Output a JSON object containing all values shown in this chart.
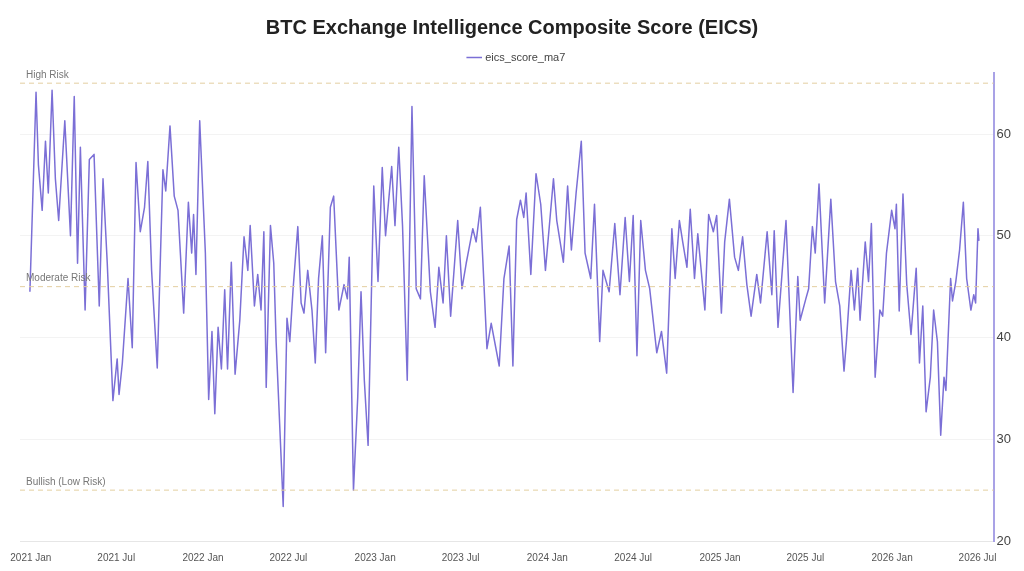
{
  "chart_data": {
    "type": "line",
    "title": "BTC Exchange Intelligence Composite Score (EICS)",
    "x": [
      "2020-12-30",
      "2021-01-05",
      "2021-01-12",
      "2021-01-17",
      "2021-01-25",
      "2021-02-01",
      "2021-02-07",
      "2021-02-15",
      "2021-02-22",
      "2021-03-01",
      "2021-03-14",
      "2021-03-26",
      "2021-04-03",
      "2021-04-10",
      "2021-04-16",
      "2021-04-26",
      "2021-05-05",
      "2021-05-15",
      "2021-05-26",
      "2021-06-03",
      "2021-06-12",
      "2021-06-24",
      "2021-07-03",
      "2021-07-07",
      "2021-07-14",
      "2021-07-26",
      "2021-08-04",
      "2021-08-12",
      "2021-08-21",
      "2021-08-30",
      "2021-09-06",
      "2021-09-14",
      "2021-09-26",
      "2021-10-08",
      "2021-10-14",
      "2021-10-23",
      "2021-11-01",
      "2021-11-09",
      "2021-11-21",
      "2021-12-01",
      "2021-12-08",
      "2021-12-12",
      "2021-12-17",
      "2021-12-25",
      "2022-01-06",
      "2022-01-13",
      "2022-01-20",
      "2022-01-26",
      "2022-02-02",
      "2022-02-09",
      "2022-02-16",
      "2022-02-22",
      "2022-03-02",
      "2022-03-10",
      "2022-03-20",
      "2022-03-29",
      "2022-04-06",
      "2022-04-11",
      "2022-04-20",
      "2022-04-27",
      "2022-05-04",
      "2022-05-10",
      "2022-05-15",
      "2022-05-24",
      "2022-05-31",
      "2022-06-05",
      "2022-06-20",
      "2022-06-28",
      "2022-07-04",
      "2022-07-11",
      "2022-07-21",
      "2022-07-28",
      "2022-08-03",
      "2022-08-11",
      "2022-08-20",
      "2022-08-27",
      "2022-09-03",
      "2022-09-11",
      "2022-09-18",
      "2022-09-28",
      "2022-10-05",
      "2022-10-16",
      "2022-10-27",
      "2022-11-03",
      "2022-11-07",
      "2022-11-16",
      "2022-11-25",
      "2022-12-02",
      "2022-12-09",
      "2022-12-17",
      "2022-12-29",
      "2023-01-07",
      "2023-01-16",
      "2023-01-23",
      "2023-02-05",
      "2023-02-12",
      "2023-02-20",
      "2023-02-28",
      "2023-03-10",
      "2023-03-20",
      "2023-03-29",
      "2023-04-07",
      "2023-04-15",
      "2023-04-28",
      "2023-05-08",
      "2023-05-16",
      "2023-05-25",
      "2023-06-01",
      "2023-06-10",
      "2023-06-25",
      "2023-07-04",
      "2023-07-13",
      "2023-07-27",
      "2023-08-03",
      "2023-08-12",
      "2023-08-26",
      "2023-09-04",
      "2023-09-21",
      "2023-10-01",
      "2023-10-12",
      "2023-10-20",
      "2023-10-28",
      "2023-11-05",
      "2023-11-12",
      "2023-11-17",
      "2023-11-27",
      "2023-12-08",
      "2023-12-18",
      "2023-12-28",
      "2024-01-14",
      "2024-01-21",
      "2024-02-04",
      "2024-02-13",
      "2024-02-21",
      "2024-03-02",
      "2024-03-13",
      "2024-03-21",
      "2024-04-02",
      "2024-04-10",
      "2024-04-21",
      "2024-04-28",
      "2024-05-11",
      "2024-05-23",
      "2024-06-03",
      "2024-06-14",
      "2024-06-23",
      "2024-07-01",
      "2024-07-09",
      "2024-07-17",
      "2024-07-27",
      "2024-08-05",
      "2024-08-20",
      "2024-08-30",
      "2024-09-10",
      "2024-09-21",
      "2024-09-28",
      "2024-10-07",
      "2024-10-14",
      "2024-10-23",
      "2024-10-30",
      "2024-11-08",
      "2024-11-15",
      "2024-11-30",
      "2024-12-08",
      "2024-12-18",
      "2024-12-25",
      "2025-01-04",
      "2025-01-11",
      "2025-01-21",
      "2025-02-01",
      "2025-02-09",
      "2025-02-18",
      "2025-02-27",
      "2025-03-08",
      "2025-03-20",
      "2025-03-28",
      "2025-04-11",
      "2025-04-21",
      "2025-04-26",
      "2025-05-04",
      "2025-05-21",
      "2025-06-05",
      "2025-06-15",
      "2025-06-20",
      "2025-07-02",
      "2025-07-08",
      "2025-07-16",
      "2025-07-22",
      "2025-07-30",
      "2025-08-11",
      "2025-08-24",
      "2025-09-03",
      "2025-09-12",
      "2025-09-21",
      "2025-09-26",
      "2025-10-06",
      "2025-10-13",
      "2025-10-20",
      "2025-10-25",
      "2025-11-05",
      "2025-11-12",
      "2025-11-18",
      "2025-11-26",
      "2025-12-06",
      "2025-12-12",
      "2025-12-20",
      "2025-12-31",
      "2026-01-07",
      "2026-01-10",
      "2026-01-16",
      "2026-01-24",
      "2026-02-01",
      "2026-02-10",
      "2026-02-21",
      "2026-02-28",
      "2026-03-07",
      "2026-03-14",
      "2026-03-23",
      "2026-03-30",
      "2026-04-07",
      "2026-04-14",
      "2026-04-21",
      "2026-04-25",
      "2026-05-05",
      "2026-05-09",
      "2026-05-16",
      "2026-05-24",
      "2026-06-01",
      "2026-06-08",
      "2026-06-17",
      "2026-06-23",
      "2026-06-27",
      "2026-07-02",
      "2026-07-04"
    ],
    "series": [
      {
        "name": "eics_score_ma7",
        "color": "#7b6fd6",
        "values": [
          44.5,
          53.5,
          64.1,
          57,
          52.5,
          59.3,
          54.2,
          64.3,
          55.6,
          51.5,
          61.3,
          50,
          63.7,
          47.3,
          58.7,
          42.7,
          57.5,
          58,
          43.1,
          55.6,
          47.3,
          33.8,
          37.9,
          34.4,
          37.5,
          45.8,
          39,
          57.2,
          50.4,
          52.8,
          57.3,
          46.6,
          37,
          56.5,
          54.4,
          60.8,
          53.9,
          52.5,
          42.4,
          53.3,
          48.3,
          52.1,
          46.2,
          61.3,
          48.3,
          33.9,
          40.6,
          32.5,
          41,
          36.9,
          44.7,
          36.9,
          47.4,
          36.4,
          41.7,
          49.9,
          46.6,
          51,
          43.1,
          46.2,
          42.7,
          50.4,
          35.1,
          51,
          47.3,
          39.6,
          23.4,
          41.9,
          39.6,
          44.8,
          50.9,
          43.4,
          42.4,
          46.6,
          42.7,
          37.5,
          45.8,
          50,
          38.5,
          52.8,
          53.9,
          42.7,
          45.2,
          43.8,
          47.9,
          25,
          34.1,
          44.5,
          35.8,
          29.4,
          54.9,
          45.5,
          56.7,
          50,
          56.8,
          51,
          58.7,
          51,
          35.8,
          62.7,
          44.8,
          43.8,
          55.9,
          44.5,
          41,
          46.9,
          43.4,
          50,
          42.1,
          51.5,
          44.8,
          47.3,
          50.7,
          49.4,
          52.8,
          38.9,
          41.4,
          37.2,
          45.8,
          49,
          37.2,
          51.6,
          53.5,
          51.8,
          54.2,
          46.2,
          56.1,
          53.1,
          46.6,
          55.6,
          51.5,
          47.4,
          54.9,
          48.6,
          54.2,
          59.3,
          48.3,
          45.8,
          53.1,
          39.6,
          46.6,
          44.5,
          51.2,
          44.2,
          51.8,
          45.5,
          52,
          38.2,
          51.5,
          46.6,
          44.8,
          38.5,
          40.6,
          36.5,
          50.7,
          45.8,
          51.5,
          49.4,
          46.9,
          52.6,
          45.8,
          50.2,
          42.7,
          52.1,
          50.4,
          52,
          42.4,
          49.4,
          53.6,
          47.9,
          46.6,
          49.9,
          45.2,
          42.1,
          46.2,
          43.4,
          50.4,
          44.2,
          50.5,
          41,
          51.5,
          34.6,
          46,
          41.7,
          43.8,
          44.8,
          50.9,
          48.3,
          55.1,
          43.4,
          53.6,
          45.5,
          43.1,
          36.7,
          39.6,
          46.6,
          42.7,
          46.8,
          41.7,
          49.4,
          45.5,
          51.2,
          36.1,
          42.7,
          42.1,
          48.3,
          52.5,
          50.7,
          53.1,
          42.6,
          54.1,
          45.2,
          40.3,
          46.8,
          37.5,
          43.1,
          32.7,
          36.1,
          42.7,
          39.6,
          30.4,
          36.1,
          34.8,
          45.8,
          43.6,
          45.5,
          48.6,
          53.3,
          45.8,
          42.7,
          44.2,
          43.4,
          50.7,
          49.5
        ]
      }
    ],
    "xlim": [
      "2020-12-09",
      "2026-08-04"
    ],
    "xticks": [
      {
        "value": "2021-01",
        "label": "2021 Jan"
      },
      {
        "value": "2021-07",
        "label": "2021 Jul"
      },
      {
        "value": "2022-01",
        "label": "2022 Jan"
      },
      {
        "value": "2022-07",
        "label": "2022 Jul"
      },
      {
        "value": "2023-01",
        "label": "2023 Jan"
      },
      {
        "value": "2023-07",
        "label": "2023 Jul"
      },
      {
        "value": "2024-01",
        "label": "2024 Jan"
      },
      {
        "value": "2024-07",
        "label": "2024 Jul"
      },
      {
        "value": "2025-01",
        "label": "2025 Jan"
      },
      {
        "value": "2025-07",
        "label": "2025 Jul"
      },
      {
        "value": "2026-01",
        "label": "2026 Jan"
      },
      {
        "value": "2026-07",
        "label": "2026 Jul"
      }
    ],
    "ylim": [
      20,
      66
    ],
    "yticks": [
      20,
      30,
      40,
      50,
      60
    ],
    "grid": "y",
    "legend": "top",
    "ref_lines": [
      {
        "axis": "y",
        "value": 65,
        "label": "High Risk",
        "color": "#e3cfa0",
        "line_style": "dashed"
      },
      {
        "axis": "y",
        "value": 45,
        "label": "Moderate Risk",
        "color": "#e3cfa0",
        "line_style": "dashed"
      },
      {
        "axis": "y",
        "value": 25,
        "label": "Bullish (Low Risk)",
        "color": "#e3cfa0",
        "line_style": "dashed"
      }
    ]
  }
}
